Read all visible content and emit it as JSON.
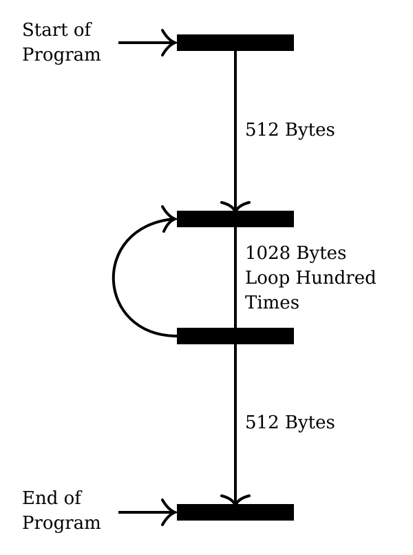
{
  "start_label": [
    "Start of",
    "Program"
  ],
  "end_label": [
    "End of",
    "Program"
  ],
  "segment_top_label": "512 Bytes",
  "loop_label": [
    "1028 Bytes",
    "Loop Hundred",
    "Times"
  ],
  "segment_bottom_label": "512 Bytes",
  "colors": {
    "ink": "#000000",
    "background": "#ffffff"
  }
}
